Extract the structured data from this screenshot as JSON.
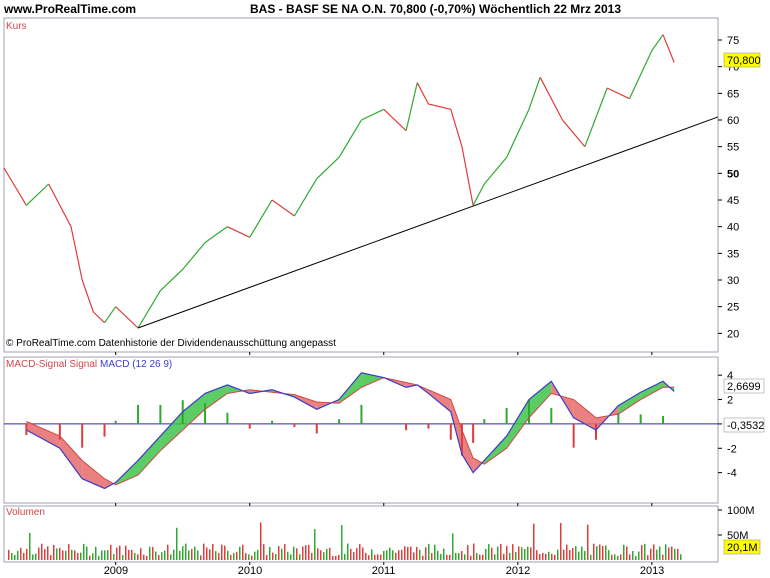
{
  "header": {
    "site": "www.ProRealTime.com",
    "ticker_line": "BAS - BASF SE NA O.N.    70,800 (-0,70%)    Wöchentlich  22 Mrz 2013"
  },
  "price_panel": {
    "label": "Kurs",
    "footer": "© ProRealTime.com  Datenhistorie der Dividendenausschüttung angepasst",
    "last_value": "70,800"
  },
  "macd_panel": {
    "label_signal": "MACD-Signal Signal",
    "label_macd": "MACD (12 26 9)",
    "macd_value": "2,6699",
    "hist_value": "-0,3532"
  },
  "volume_panel": {
    "label": "Volumen",
    "last_value": "20,1M"
  },
  "colors": {
    "background": "#ffffff",
    "panel_frame": "#a0a0b4",
    "up": "#2fa82f",
    "down": "#e03c3c",
    "macd_line": "#3c3ccc",
    "signal_line": "#d04848",
    "zero_line": "#2a2aaa",
    "value_box": "#ffff00",
    "panel_label": "#d04848"
  },
  "chart_data": [
    {
      "type": "line",
      "title": "Kurs",
      "x": [
        "2008-03",
        "2008-05",
        "2008-07",
        "2008-09",
        "2008-10",
        "2008-11",
        "2008-12",
        "2009-01",
        "2009-03",
        "2009-05",
        "2009-07",
        "2009-09",
        "2009-11",
        "2010-01",
        "2010-03",
        "2010-05",
        "2010-07",
        "2010-09",
        "2010-11",
        "2011-01",
        "2011-03",
        "2011-04",
        "2011-05",
        "2011-07",
        "2011-08",
        "2011-09",
        "2011-10",
        "2011-12",
        "2012-02",
        "2012-03",
        "2012-05",
        "2012-07",
        "2012-09",
        "2012-11",
        "2013-01",
        "2013-02",
        "2013-03"
      ],
      "y": [
        51,
        44,
        48,
        40,
        30,
        24,
        22,
        25,
        21,
        28,
        32,
        37,
        40,
        38,
        45,
        42,
        49,
        53,
        60,
        62,
        58,
        67,
        63,
        62,
        55,
        44,
        48,
        53,
        62,
        68,
        60,
        55,
        66,
        64,
        73,
        76,
        70.8
      ],
      "ylim": [
        18,
        78
      ],
      "yticks": [
        20,
        25,
        30,
        35,
        40,
        45,
        50,
        55,
        60,
        65,
        70,
        75
      ],
      "trendline": [
        [
          "2009-03",
          21
        ],
        [
          "2013-03",
          60
        ]
      ],
      "grid": false
    },
    {
      "type": "line",
      "title": "MACD (12 26 9)",
      "x": [
        "2008-05",
        "2008-08",
        "2008-10",
        "2008-12",
        "2009-01",
        "2009-03",
        "2009-05",
        "2009-07",
        "2009-09",
        "2009-11",
        "2010-01",
        "2010-03",
        "2010-05",
        "2010-07",
        "2010-09",
        "2010-11",
        "2011-01",
        "2011-03",
        "2011-04",
        "2011-05",
        "2011-07",
        "2011-08",
        "2011-09",
        "2011-10",
        "2011-12",
        "2012-02",
        "2012-04",
        "2012-06",
        "2012-08",
        "2012-10",
        "2012-12",
        "2013-02",
        "2013-03"
      ],
      "series": [
        {
          "name": "MACD",
          "values": [
            -0.5,
            -2.0,
            -4.5,
            -5.3,
            -4.8,
            -3.0,
            -1.0,
            1.0,
            2.5,
            3.2,
            2.5,
            2.8,
            2.2,
            1.2,
            2.0,
            4.2,
            3.8,
            3.0,
            3.2,
            2.5,
            1.0,
            -2.5,
            -4.0,
            -3.0,
            -1.0,
            2.0,
            3.5,
            0.5,
            -0.5,
            1.5,
            2.6,
            3.5,
            2.67
          ]
        },
        {
          "name": "MACD-Signal",
          "values": [
            0.2,
            -1.0,
            -3.0,
            -4.5,
            -5.0,
            -4.2,
            -2.2,
            -0.5,
            1.2,
            2.5,
            2.8,
            2.6,
            2.4,
            1.8,
            1.7,
            3.0,
            3.8,
            3.4,
            3.2,
            2.8,
            2.0,
            -0.5,
            -2.8,
            -3.3,
            -2.0,
            0.5,
            2.5,
            2.0,
            0.5,
            0.8,
            2.0,
            3.0,
            3.02
          ]
        }
      ],
      "ylim": [
        -6,
        5
      ],
      "yticks": [
        -4,
        -2,
        0,
        2,
        4
      ]
    },
    {
      "type": "bar",
      "title": "Volumen",
      "yticks": [
        "50M",
        "100M"
      ],
      "ylim": [
        0,
        100
      ]
    }
  ],
  "x_axis": {
    "labels": [
      "2009",
      "2010",
      "2011",
      "2012",
      "2013"
    ]
  }
}
